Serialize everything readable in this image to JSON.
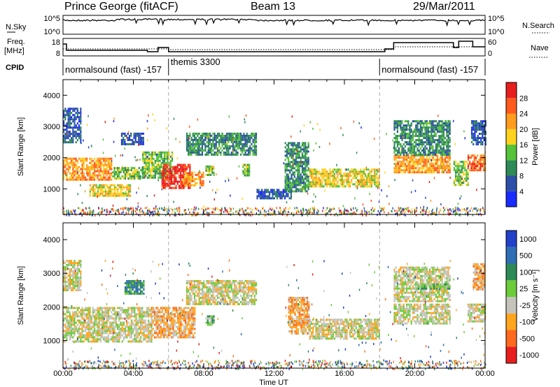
{
  "header": {
    "station": "Prince George (fitACF)",
    "beam": "Beam 13",
    "date": "29/Mar/2011"
  },
  "top_panels": {
    "nsky_label": "N.Sky",
    "nsky_ticks": [
      "10^5",
      "10^0"
    ],
    "nsearch_label": "N.Search",
    "nsearch_ticks": [
      "10^5",
      "10^0"
    ],
    "freq_label_line1": "Freq.",
    "freq_label_line2": "[MHz]",
    "freq_ticks": [
      "18",
      "8"
    ],
    "nave_label": "Nave",
    "nave_ticks": [
      "60",
      "0"
    ],
    "cpid_label": "CPID"
  },
  "cpid_segments": [
    {
      "label": "normalsound (fast)  -157",
      "start_h": 0,
      "end_h": 6
    },
    {
      "label": "themis 3300",
      "start_h": 6,
      "end_h": 18
    },
    {
      "label": "normalsound (fast)  -157",
      "start_h": 18,
      "end_h": 24
    }
  ],
  "chart_data": [
    {
      "type": "heatmap",
      "quantity": "power",
      "xlabel": "Time UT",
      "ylabel": "Slant Range [km]",
      "xlim_hours": [
        0,
        24
      ],
      "ylim": [
        180,
        4500
      ],
      "x_ticks": [
        "00:00",
        "04:00",
        "08:00",
        "12:00",
        "16:00",
        "20:00",
        "00:00"
      ],
      "y_ticks": [
        1000,
        2000,
        3000,
        4000
      ],
      "colorbar": {
        "label": "Power [dB]",
        "ticks": [
          "4",
          "8",
          "12",
          "16",
          "20",
          "24",
          "28"
        ],
        "colors": [
          "#1a2bff",
          "#2d4fa8",
          "#2e8a56",
          "#55c23a",
          "#ffd21e",
          "#ff9c1e",
          "#ff5a1e",
          "#e81e1e"
        ]
      },
      "regions": [
        {
          "t0": 0.0,
          "t1": 2.8,
          "r0": 1300,
          "r1": 2000,
          "level": 5
        },
        {
          "t0": 2.8,
          "t1": 4.7,
          "r0": 1300,
          "r1": 1700,
          "level": 3
        },
        {
          "t0": 1.5,
          "t1": 3.8,
          "r0": 800,
          "r1": 1150,
          "level": 4
        },
        {
          "t0": 0.0,
          "t1": 1.0,
          "r0": 2500,
          "r1": 3600,
          "level": 1
        },
        {
          "t0": 3.3,
          "t1": 4.6,
          "r0": 2400,
          "r1": 2800,
          "level": 1
        },
        {
          "t0": 4.5,
          "t1": 6.2,
          "r0": 1350,
          "r1": 2200,
          "level": 3
        },
        {
          "t0": 5.6,
          "t1": 7.2,
          "r0": 1000,
          "r1": 1800,
          "level": 7
        },
        {
          "t0": 6.8,
          "t1": 8.0,
          "r0": 1100,
          "r1": 1550,
          "level": 5
        },
        {
          "t0": 7.0,
          "t1": 11.0,
          "r0": 2100,
          "r1": 2800,
          "level": 2
        },
        {
          "t0": 8.1,
          "t1": 8.6,
          "r0": 1450,
          "r1": 1750,
          "level": 3
        },
        {
          "t0": 10.2,
          "t1": 10.6,
          "r0": 1450,
          "r1": 1800,
          "level": 3
        },
        {
          "t0": 11.0,
          "t1": 13.0,
          "r0": 700,
          "r1": 1000,
          "level": 1
        },
        {
          "t0": 12.6,
          "t1": 14.0,
          "r0": 900,
          "r1": 2500,
          "level": 2
        },
        {
          "t0": 14.0,
          "t1": 18.0,
          "r0": 1050,
          "r1": 1650,
          "level": 4
        },
        {
          "t0": 18.8,
          "t1": 22.0,
          "r0": 1500,
          "r1": 2100,
          "level": 5
        },
        {
          "t0": 18.8,
          "t1": 22.0,
          "r0": 2100,
          "r1": 3200,
          "level": 2
        },
        {
          "t0": 22.2,
          "t1": 23.0,
          "r0": 1100,
          "r1": 1900,
          "level": 3
        },
        {
          "t0": 23.0,
          "t1": 24.0,
          "r0": 1600,
          "r1": 2100,
          "level": 6
        },
        {
          "t0": 23.2,
          "t1": 24.0,
          "r0": 2400,
          "r1": 3200,
          "level": 1
        }
      ]
    },
    {
      "type": "heatmap",
      "quantity": "velocity",
      "xlabel": "Time UT",
      "ylabel": "Slant Range [km]",
      "xlim_hours": [
        0,
        24
      ],
      "ylim": [
        180,
        4500
      ],
      "x_ticks": [
        "00:00",
        "04:00",
        "08:00",
        "12:00",
        "16:00",
        "20:00",
        "00:00"
      ],
      "y_ticks": [
        1000,
        2000,
        3000,
        4000
      ],
      "colorbar": {
        "label": "Velocity  [m s⁻¹]",
        "ticks": [
          "1000",
          "500",
          "100",
          "25",
          "-25",
          "-100",
          "-500",
          "-1000"
        ],
        "colors": [
          "#2240c8",
          "#2f6eb5",
          "#2e8a56",
          "#6ccc3a",
          "#c4c4bc",
          "#ffa51e",
          "#ff6a1e",
          "#e81e1e"
        ]
      },
      "regions": [
        {
          "t0": 0.0,
          "t1": 5.0,
          "r0": 1000,
          "r1": 2000,
          "level": 4
        },
        {
          "t0": 0.0,
          "t1": 1.0,
          "r0": 2500,
          "r1": 3400,
          "level": 4
        },
        {
          "t0": 3.5,
          "t1": 4.6,
          "r0": 2400,
          "r1": 2800,
          "level": 2
        },
        {
          "t0": 5.0,
          "t1": 7.5,
          "r0": 1100,
          "r1": 2000,
          "level": 5
        },
        {
          "t0": 7.0,
          "t1": 11.0,
          "r0": 2100,
          "r1": 2800,
          "level": 4
        },
        {
          "t0": 8.1,
          "t1": 8.6,
          "r0": 1450,
          "r1": 1750,
          "level": 3
        },
        {
          "t0": 12.8,
          "t1": 14.0,
          "r0": 1200,
          "r1": 2300,
          "level": 5
        },
        {
          "t0": 14.0,
          "t1": 18.0,
          "r0": 1050,
          "r1": 1650,
          "level": 4
        },
        {
          "t0": 18.8,
          "t1": 22.0,
          "r0": 1500,
          "r1": 2100,
          "level": 4
        },
        {
          "t0": 18.8,
          "t1": 22.0,
          "r0": 2200,
          "r1": 3200,
          "level": 4
        },
        {
          "t0": 20.0,
          "t1": 22.0,
          "r0": 2550,
          "r1": 2700,
          "level": 3
        },
        {
          "t0": 23.0,
          "t1": 24.0,
          "r0": 1600,
          "r1": 2100,
          "level": 4
        },
        {
          "t0": 23.3,
          "t1": 24.0,
          "r0": 2500,
          "r1": 3300,
          "level": 5
        }
      ]
    }
  ]
}
